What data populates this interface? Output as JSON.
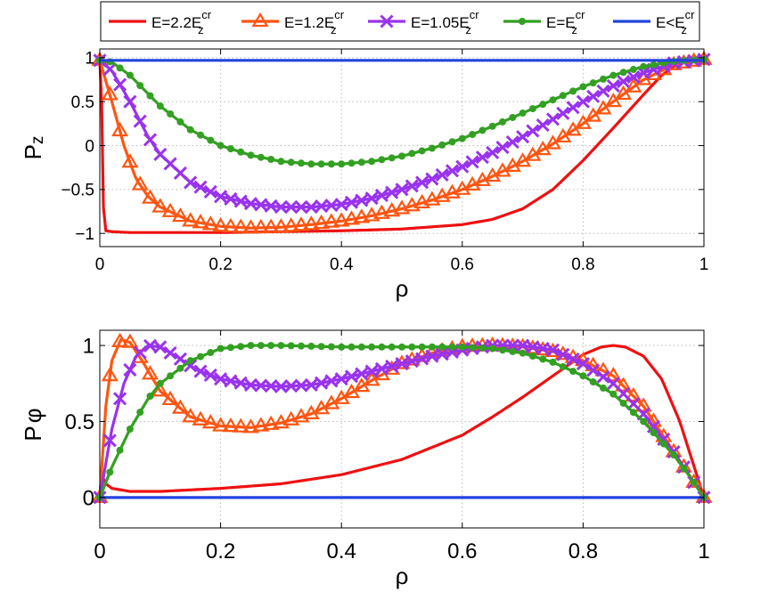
{
  "legend": [
    {
      "base": "E=2.2E",
      "sup": "cr",
      "sub": "z",
      "series": "E22"
    },
    {
      "base": "E=1.2E",
      "sup": "cr",
      "sub": "z",
      "series": "E12"
    },
    {
      "base": "E=1.05E",
      "sup": "cr",
      "sub": "z",
      "series": "E105"
    },
    {
      "base": "E=E",
      "sup": "cr",
      "sub": "z",
      "series": "Ecr"
    },
    {
      "base": "E<E",
      "sup": "cr",
      "sub": "z",
      "series": "Elt"
    }
  ],
  "colors": {
    "E22": "#ee1111",
    "E12": "#ff5511",
    "E105": "#9933ee",
    "Ecr": "#33a022",
    "Elt": "#2244dd"
  },
  "markers": {
    "E22": "none",
    "E12": "triangle",
    "E105": "x",
    "Ecr": "dot",
    "Elt": "none"
  },
  "chart_data": [
    {
      "type": "line",
      "id": "pz",
      "title": "",
      "xlabel": "ρ",
      "ylabel": "Pz",
      "ylabel_main": "P",
      "ylabel_sub": "z",
      "xlim": [
        0,
        1
      ],
      "ylim": [
        -1.15,
        1.1
      ],
      "xticks": [
        0,
        0.2,
        0.4,
        0.6,
        0.8,
        1
      ],
      "xtick_labels": [
        "0",
        "0.2",
        "0.4",
        "0.6",
        "0.8",
        "1"
      ],
      "yticks": [
        -1,
        -0.5,
        0,
        0.5,
        1
      ],
      "ytick_labels": [
        "−1",
        "−0.5",
        "0",
        "0.5",
        "1"
      ],
      "grid": true,
      "series": [
        {
          "key": "E22",
          "name": "E=2.2E_z^cr",
          "x": [
            0,
            0.003,
            0.006,
            0.01,
            0.02,
            0.05,
            0.1,
            0.2,
            0.3,
            0.4,
            0.5,
            0.6,
            0.65,
            0.7,
            0.75,
            0.8,
            0.85,
            0.9,
            0.93,
            0.96,
            0.98,
            1.0
          ],
          "y": [
            0.97,
            0.5,
            -0.7,
            -0.97,
            -0.98,
            -0.99,
            -0.99,
            -0.99,
            -0.98,
            -0.97,
            -0.95,
            -0.9,
            -0.84,
            -0.72,
            -0.5,
            -0.17,
            0.2,
            0.58,
            0.8,
            0.95,
            0.98,
            0.98
          ]
        },
        {
          "key": "E12",
          "name": "E=1.2E_z^cr",
          "x": [
            0,
            0.02,
            0.04,
            0.06,
            0.08,
            0.1,
            0.15,
            0.2,
            0.25,
            0.3,
            0.35,
            0.4,
            0.45,
            0.5,
            0.55,
            0.6,
            0.65,
            0.7,
            0.75,
            0.8,
            0.85,
            0.9,
            0.95,
            1.0
          ],
          "y": [
            0.97,
            0.5,
            0.0,
            -0.38,
            -0.58,
            -0.7,
            -0.86,
            -0.92,
            -0.94,
            -0.93,
            -0.9,
            -0.86,
            -0.8,
            -0.72,
            -0.62,
            -0.5,
            -0.35,
            -0.18,
            0.02,
            0.25,
            0.5,
            0.75,
            0.92,
            0.98
          ]
        },
        {
          "key": "E105",
          "name": "E=1.05E_z^cr",
          "x": [
            0,
            0.02,
            0.05,
            0.08,
            0.1,
            0.15,
            0.2,
            0.25,
            0.3,
            0.35,
            0.4,
            0.45,
            0.5,
            0.55,
            0.6,
            0.65,
            0.7,
            0.75,
            0.8,
            0.85,
            0.9,
            0.95,
            1.0
          ],
          "y": [
            0.97,
            0.85,
            0.5,
            0.1,
            -0.1,
            -0.42,
            -0.58,
            -0.66,
            -0.7,
            -0.7,
            -0.67,
            -0.6,
            -0.5,
            -0.38,
            -0.24,
            -0.08,
            0.1,
            0.3,
            0.5,
            0.68,
            0.83,
            0.94,
            0.98
          ]
        },
        {
          "key": "Ecr",
          "name": "E=E_z^cr",
          "x": [
            0,
            0.02,
            0.05,
            0.1,
            0.15,
            0.2,
            0.25,
            0.3,
            0.35,
            0.4,
            0.45,
            0.5,
            0.55,
            0.6,
            0.65,
            0.7,
            0.75,
            0.8,
            0.85,
            0.9,
            0.95,
            1.0
          ],
          "y": [
            0.97,
            0.95,
            0.8,
            0.45,
            0.18,
            0.0,
            -0.11,
            -0.18,
            -0.21,
            -0.21,
            -0.18,
            -0.12,
            -0.03,
            0.08,
            0.22,
            0.37,
            0.52,
            0.67,
            0.8,
            0.9,
            0.96,
            0.98
          ]
        },
        {
          "key": "Elt",
          "name": "E<E_z^cr",
          "x": [
            0,
            1
          ],
          "y": [
            0.97,
            0.97
          ]
        }
      ]
    },
    {
      "type": "line",
      "id": "pphi",
      "title": "",
      "xlabel": "ρ",
      "ylabel": "Pφ",
      "ylabel_main": "P",
      "ylabel_sub": "φ",
      "xlim": [
        0,
        1
      ],
      "ylim": [
        -0.2,
        1.1
      ],
      "xticks": [
        0,
        0.2,
        0.4,
        0.6,
        0.8,
        1
      ],
      "xtick_labels": [
        "0",
        "0.2",
        "0.4",
        "0.6",
        "0.8",
        "1"
      ],
      "yticks": [
        0,
        0.5,
        1
      ],
      "ytick_labels": [
        "0",
        "0.5",
        "1"
      ],
      "grid": true,
      "series": [
        {
          "key": "E22",
          "name": "E=2.2E_z^cr",
          "x": [
            0,
            0.003,
            0.01,
            0.02,
            0.05,
            0.1,
            0.2,
            0.3,
            0.4,
            0.5,
            0.6,
            0.65,
            0.7,
            0.75,
            0.8,
            0.83,
            0.85,
            0.87,
            0.9,
            0.93,
            0.96,
            0.98,
            1.0
          ],
          "y": [
            0,
            0.15,
            0.09,
            0.06,
            0.04,
            0.04,
            0.06,
            0.09,
            0.15,
            0.25,
            0.41,
            0.53,
            0.66,
            0.8,
            0.94,
            0.99,
            1.0,
            0.99,
            0.93,
            0.78,
            0.5,
            0.25,
            0.0
          ]
        },
        {
          "key": "E12",
          "name": "E=1.2E_z^cr",
          "x": [
            0,
            0.01,
            0.02,
            0.035,
            0.05,
            0.07,
            0.1,
            0.15,
            0.2,
            0.25,
            0.3,
            0.35,
            0.4,
            0.45,
            0.5,
            0.55,
            0.6,
            0.65,
            0.7,
            0.75,
            0.8,
            0.85,
            0.9,
            0.95,
            0.98,
            1.0
          ],
          "y": [
            0,
            0.6,
            0.9,
            1.04,
            1.02,
            0.9,
            0.7,
            0.53,
            0.47,
            0.46,
            0.49,
            0.55,
            0.65,
            0.77,
            0.88,
            0.95,
            0.99,
            1.0,
            0.99,
            0.96,
            0.9,
            0.8,
            0.6,
            0.3,
            0.12,
            0.0
          ]
        },
        {
          "key": "E105",
          "name": "E=1.05E_z^cr",
          "x": [
            0,
            0.02,
            0.04,
            0.06,
            0.08,
            0.1,
            0.13,
            0.16,
            0.2,
            0.25,
            0.3,
            0.35,
            0.4,
            0.45,
            0.5,
            0.55,
            0.6,
            0.65,
            0.7,
            0.75,
            0.8,
            0.85,
            0.9,
            0.95,
            0.98,
            1.0
          ],
          "y": [
            0,
            0.45,
            0.75,
            0.93,
            1.0,
            0.99,
            0.92,
            0.84,
            0.78,
            0.74,
            0.73,
            0.74,
            0.78,
            0.83,
            0.88,
            0.93,
            0.97,
            1.0,
            1.0,
            0.97,
            0.88,
            0.75,
            0.55,
            0.3,
            0.12,
            0.0
          ]
        },
        {
          "key": "Ecr",
          "name": "E=E_z^cr",
          "x": [
            0,
            0.02,
            0.05,
            0.08,
            0.1,
            0.15,
            0.2,
            0.25,
            0.3,
            0.4,
            0.5,
            0.6,
            0.65,
            0.7,
            0.75,
            0.8,
            0.85,
            0.9,
            0.95,
            0.98,
            1.0
          ],
          "y": [
            0,
            0.2,
            0.45,
            0.65,
            0.75,
            0.9,
            0.98,
            1.0,
            1.0,
            0.99,
            0.99,
            0.99,
            0.98,
            0.95,
            0.89,
            0.8,
            0.68,
            0.5,
            0.28,
            0.12,
            0.0
          ]
        },
        {
          "key": "Elt",
          "name": "E<E_z^cr",
          "x": [
            0,
            1
          ],
          "y": [
            0,
            0
          ]
        }
      ]
    }
  ]
}
